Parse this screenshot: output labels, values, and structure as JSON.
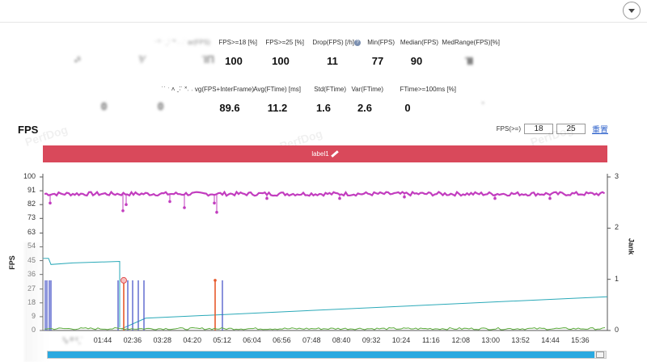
{
  "header": {
    "collapse_icon": "chevron-down-icon"
  },
  "stats_row1": [
    {
      "label": "⁻ˀ ˑ  ˍ˸ ˉ˟ ˓ ˒˙ ar(FPS)",
      "value": "·",
      "blurred": true
    },
    {
      "label": "",
      "value": "ˢ",
      "blurred": true
    },
    {
      "label": "",
      "value": "ˀ∕",
      "blurred": true
    },
    {
      "label": "",
      "value": "ΊΠ",
      "blurred": true
    },
    {
      "label": "FPS>=18 [%]",
      "value": "100"
    },
    {
      "label": "FPS>=25 [%]",
      "value": "100"
    },
    {
      "label": "Drop(FPS) [/h]",
      "value": "11",
      "help": true
    },
    {
      "label": "Min(FPS)",
      "value": "77"
    },
    {
      "label": "Median(FPS)",
      "value": "90"
    },
    {
      "label": "MedRange(FPS)[%]",
      "value": "ΊΙ",
      "blurred_value": true
    }
  ],
  "stats_row2": [
    {
      "label": "˙˙ ˑ ˄ ˍ˸˙ ˟˓ ˒ vg(FPS+InterFrame)",
      "value": "89.6"
    },
    {
      "label": "Avg(FTime) [ms]",
      "value": "11.2"
    },
    {
      "label": "Std(FTime)",
      "value": "1.6"
    },
    {
      "label": "Var(FTime)",
      "value": "2.6"
    },
    {
      "label": "FTime>=100ms [%]",
      "value": "0"
    }
  ],
  "stats_row2_blurred": [
    "0",
    "0",
    "˙"
  ],
  "fps_section": {
    "title": "FPS",
    "threshold_label": "FPS(>=)",
    "threshold1": "18",
    "threshold2": "25",
    "reset_label": "重置",
    "label_bar_text": "label1",
    "watermark": "PerfDog"
  },
  "colors": {
    "label_bar": "#d9495b",
    "fps_series": "#c23dbf",
    "jank_series": "#4a58c8",
    "big_jank_series": "#e65a2c",
    "fps_line": "#2aa9b8",
    "ftime_line": "#2aa9b8",
    "scroll_fill": "#2aa9e0"
  },
  "chart_data": {
    "type": "line",
    "yaxis_left": {
      "ticks": [
        "100",
        "91",
        "82",
        "73",
        "63",
        "54",
        "45",
        "36",
        "27",
        "18",
        "9",
        "0"
      ],
      "ylim": [
        0,
        100
      ],
      "label": "FPS"
    },
    "yaxis_right": {
      "ticks": [
        "3",
        "2",
        "1",
        "0"
      ],
      "ylim": [
        0,
        3
      ],
      "label": "Jank"
    },
    "x_ticks": [
      "01:44",
      "02:36",
      "03:28",
      "04:20",
      "05:12",
      "06:04",
      "06:56",
      "07:48",
      "08:40",
      "09:32",
      "10:24",
      "11:16",
      "12:08",
      "13:00",
      "13:52",
      "14:44",
      "15:36"
    ],
    "x_start_label": "ˀ₀ ˡˀ ˁˍ˙",
    "series": [
      {
        "values_description_omitted": true,
        "level": 89
      },
      {
        "jank_spikes_at": [
          "00:00",
          "02:32",
          "02:40",
          "02:48",
          "02:56",
          "03:04",
          "05:08",
          "05:18"
        ]
      }
    ]
  },
  "scrollbar": {
    "progress": 0.98
  }
}
